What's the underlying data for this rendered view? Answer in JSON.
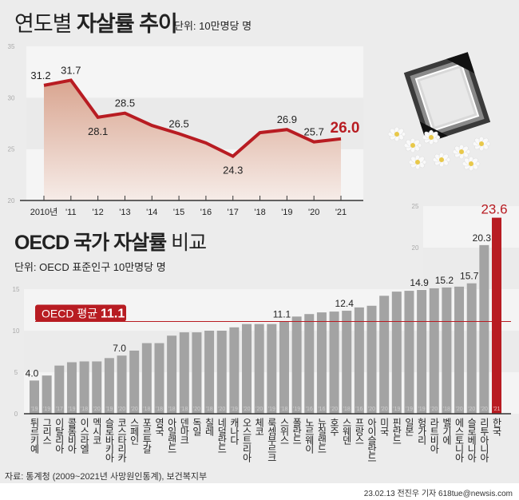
{
  "header1": {
    "title_light": "연도별",
    "title_bold": "자살률 추이",
    "unit": "단위: 10만명당 명"
  },
  "header2": {
    "title_bold": "OECD 국가 자살률",
    "title_light": "비교",
    "unit": "단위: OECD 표준인구 10만명당 명"
  },
  "source": "자료: 통계청 (2009~2021년 사망원인통계), 보건복지부",
  "credit": "23.02.13 전진우 기자 618tue@newsis.com",
  "colors": {
    "accent": "#b81c22",
    "bar": "#a3a3a3",
    "area_top": "#d9a590",
    "area_bottom": "#f6ece8",
    "background": "#ececec"
  },
  "decoration": "framed-photo-with-black-ribbon-and-white-flowers-icon",
  "chart_data": [
    {
      "type": "area",
      "categories": [
        "2010년",
        "'11",
        "'12",
        "'13",
        "'14",
        "'15",
        "'16",
        "'17",
        "'18",
        "'19",
        "'20",
        "'21"
      ],
      "values": [
        31.2,
        31.7,
        28.1,
        28.5,
        27.3,
        26.5,
        25.6,
        24.3,
        26.6,
        26.9,
        25.7,
        26.0
      ],
      "data_labels": [
        "31.2",
        "31.7",
        "28.1",
        "28.5",
        null,
        "26.5",
        null,
        "24.3",
        null,
        "26.9",
        "25.7",
        "26.0"
      ],
      "yticks": [
        "20",
        "25",
        "30",
        "35"
      ],
      "ylim": [
        20,
        35
      ],
      "grid": "alternating bands",
      "highlight_last": true
    },
    {
      "type": "bar",
      "categories": [
        "튀르키예",
        "그리스",
        "이탈리아",
        "콜롬비아",
        "이스라엘",
        "멕시코",
        "슬로바키아",
        "코스타리카",
        "스페인",
        "포르투갈",
        "영국",
        "아일랜드",
        "덴마크",
        "독일",
        "칠레",
        "네덜란드",
        "캐나다",
        "오스트리아",
        "체코",
        "룩셈부르크",
        "스위스",
        "폴란드",
        "노르웨이",
        "뉴질랜드",
        "호주",
        "스웨덴",
        "프랑스",
        "아이슬란드",
        "미국",
        "핀란드",
        "일본",
        "헝가리",
        "라트비아",
        "벨기에",
        "에스토니아",
        "슬로베니아",
        "리투아니아",
        "한국"
      ],
      "years": [
        "'19",
        "'19",
        "'17",
        "'19",
        "'18",
        "'20",
        "'19",
        "'20",
        "'20",
        "'18",
        "'18",
        "'18",
        "'18",
        "'20",
        "'18",
        "'20",
        "'19",
        "'20",
        "'20",
        "'19",
        "'18",
        "'19",
        "'16",
        "'16",
        "'20",
        "'18",
        "'16",
        "'20",
        "'20",
        "'19",
        "'19",
        "'19",
        "'20",
        "'18",
        "'20",
        "'20",
        "'20",
        "'21"
      ],
      "values": [
        4.0,
        4.6,
        5.8,
        6.2,
        6.3,
        6.3,
        6.7,
        7.0,
        7.6,
        8.5,
        8.5,
        9.4,
        9.8,
        9.8,
        10.0,
        10.0,
        10.4,
        10.8,
        10.8,
        10.8,
        11.1,
        11.7,
        12.0,
        12.2,
        12.3,
        12.4,
        12.8,
        13.0,
        14.2,
        14.7,
        14.8,
        14.9,
        15.1,
        15.2,
        15.3,
        15.7,
        20.3,
        23.6
      ],
      "data_labels": [
        "4.0",
        null,
        null,
        null,
        null,
        null,
        null,
        "7.0",
        null,
        null,
        null,
        null,
        null,
        null,
        null,
        null,
        null,
        null,
        null,
        null,
        "11.1",
        null,
        null,
        null,
        null,
        "12.4",
        null,
        null,
        null,
        null,
        null,
        "14.9",
        null,
        "15.2",
        null,
        "15.7",
        "20.3",
        "23.6"
      ],
      "highlight": "한국",
      "reference_line": {
        "label": "OECD 평균",
        "value": 11.1,
        "value_label": "11.1"
      },
      "yticks": [
        "0",
        "5",
        "10",
        "15",
        "20",
        "25"
      ],
      "ylim": [
        0,
        25
      ],
      "grid": "alternating bands"
    }
  ]
}
